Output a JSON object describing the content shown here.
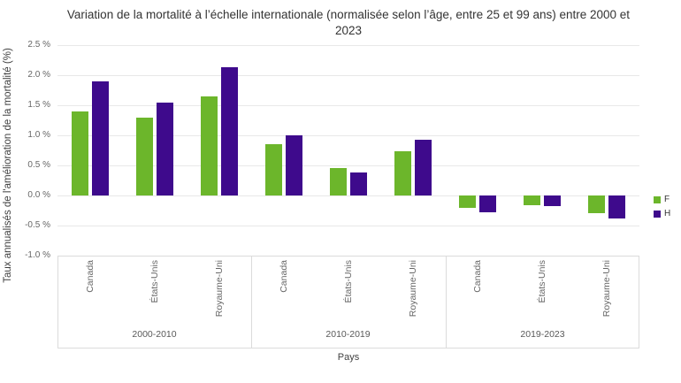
{
  "title": "Variation de la mortalité à l’échelle internationale (normalisée selon l’âge, entre 25 et 99 ans) entre 2000 et 2023",
  "chart_data": {
    "type": "bar",
    "title": "Variation de la mortalité à l’échelle internationale (normalisée selon l’âge, entre 25 et 99 ans) entre 2000 et 2023",
    "xlabel": "Pays",
    "ylabel": "Taux annualisés de l'amélioration de la mortalité (%)",
    "ylim": [
      -1.0,
      2.5
    ],
    "ytick_labels": [
      "2.5 %",
      "2.0 %",
      "1.5 %",
      "1.0 %",
      "0.5 %",
      "0.0 %",
      "-0.5 %",
      "-1.0 %"
    ],
    "ytick_values": [
      2.5,
      2.0,
      1.5,
      1.0,
      0.5,
      0.0,
      -0.5,
      -1.0
    ],
    "grid": true,
    "legend_position": "right",
    "groups": [
      "2000-2010",
      "2010-2019",
      "2019-2023"
    ],
    "categories": [
      "Canada",
      "États-Unis",
      "Royaume-Uni"
    ],
    "series": [
      {
        "name": "F",
        "color": "#6cb62b",
        "values": [
          [
            1.4,
            1.3,
            1.65
          ],
          [
            0.85,
            0.45,
            0.73
          ],
          [
            -0.2,
            -0.16,
            -0.3
          ]
        ]
      },
      {
        "name": "H",
        "color": "#3e0a8c",
        "values": [
          [
            1.9,
            1.55,
            2.13
          ],
          [
            1.0,
            0.38,
            0.92
          ],
          [
            -0.28,
            -0.17,
            -0.38
          ]
        ]
      }
    ]
  },
  "legend": {
    "items": [
      {
        "label": "F",
        "color": "#6cb62b"
      },
      {
        "label": "H",
        "color": "#3e0a8c"
      }
    ]
  }
}
